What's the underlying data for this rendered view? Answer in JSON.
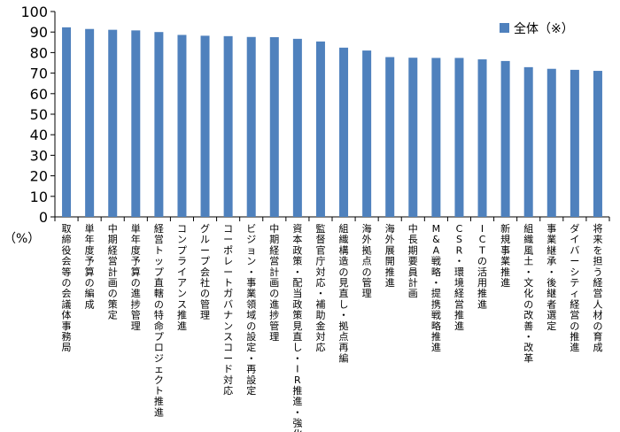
{
  "chart_data": {
    "type": "bar",
    "title": "",
    "xlabel": "",
    "ylabel": "",
    "unit_label": "（%）",
    "ylim": [
      0,
      100
    ],
    "yticks": [
      0,
      10,
      20,
      30,
      40,
      50,
      60,
      70,
      80,
      90,
      100
    ],
    "grid": false,
    "legend_position": "top-right",
    "bar_color": "#4f81bd",
    "categories": [
      "取締役会等の会議体事務局",
      "単年度予算の編成",
      "中期経営計画の策定",
      "単年度予算の進捗管理",
      "経営トップ直轄の特命プロジェクト推進",
      "コンプライアンス推進",
      "グループ会社の管理",
      "コーポレートガバナンスコード対応",
      "ビジョン・事業領域の設定・再設定",
      "中期経営計画の進捗管理",
      "資本政策・配当政策見直し・IR推進・強化",
      "監督官庁対応・補助金対応",
      "組織構造の見直し・拠点再編",
      "海外拠点の管理",
      "海外展開推進",
      "中長期要員計画",
      "M&A戦略・提携戦略推進",
      "CSR・環境経営推進",
      "ICTの活用推進",
      "新規事業推進",
      "組織風土・文化の改善・改革",
      "事業継承・後継者選定",
      "ダイバーシティ経営の推進",
      "将来を担う経営人材の育成"
    ],
    "series": [
      {
        "name": "全体（※）",
        "values": [
          92.3,
          91.5,
          91.1,
          90.8,
          90.0,
          88.6,
          88.2,
          88.0,
          87.6,
          87.5,
          86.7,
          85.4,
          82.4,
          81.0,
          77.8,
          77.5,
          77.4,
          77.4,
          76.7,
          75.9,
          72.9,
          72.1,
          71.6,
          71.1
        ]
      }
    ]
  }
}
